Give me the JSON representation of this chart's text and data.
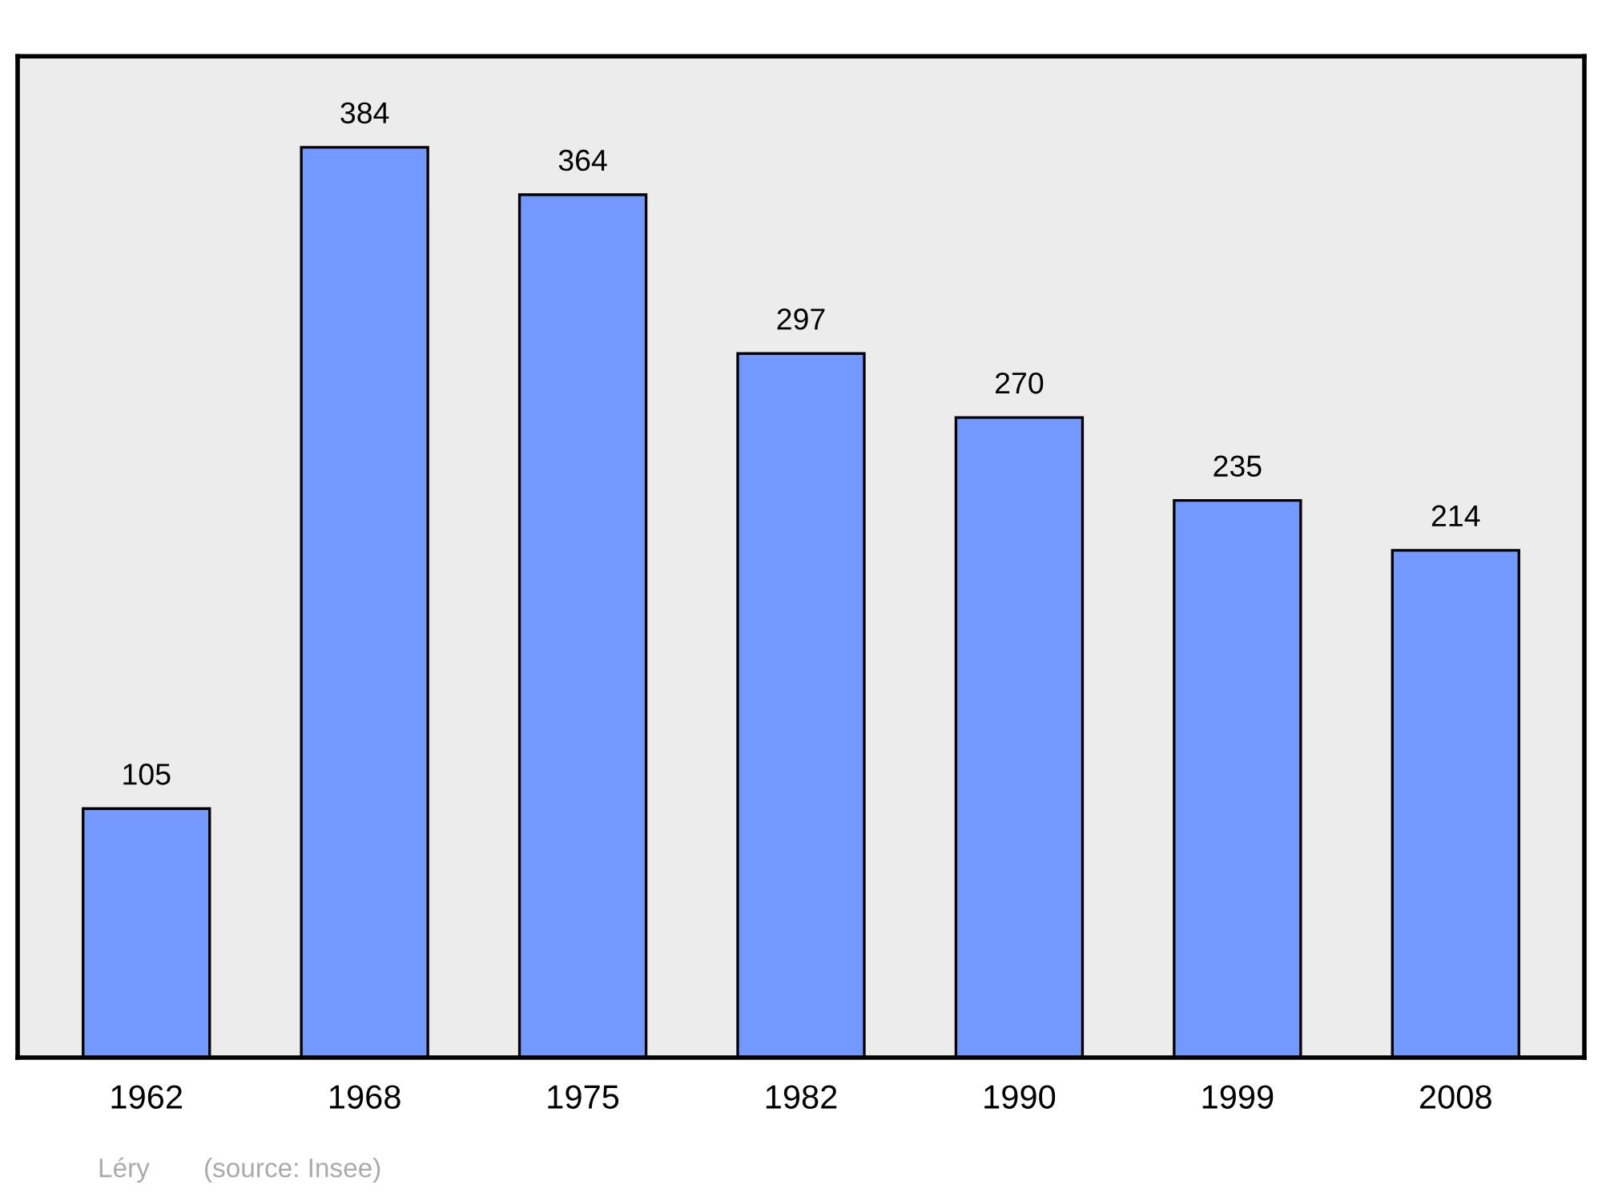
{
  "chart_data": {
    "type": "bar",
    "categories": [
      "1962",
      "1968",
      "1975",
      "1982",
      "1990",
      "1999",
      "2008"
    ],
    "values": [
      105,
      384,
      364,
      297,
      270,
      235,
      214
    ],
    "color": "#7399ff",
    "data_labels": true,
    "grid": false,
    "legend": false,
    "tick_labels": "x",
    "annotations": [
      "Léry",
      "(source: Insee)"
    ]
  }
}
